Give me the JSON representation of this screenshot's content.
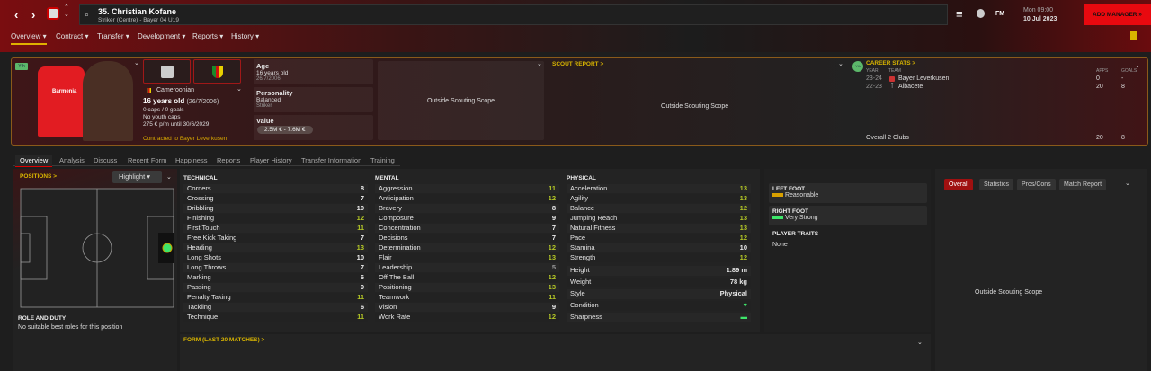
{
  "header": {
    "name": "35. Christian Kofane",
    "subtitle": "Striker (Centre) - Bayer 04 U19",
    "day_time": "Mon 09:00",
    "date": "10 Jul 2023",
    "add_manager": "ADD MANAGER",
    "fm": "FM"
  },
  "menu": [
    "Overview",
    "Contract",
    "Transfer",
    "Development",
    "Reports",
    "History"
  ],
  "profile": {
    "squad_badge": "Yth",
    "nationality": "Cameroonian",
    "age_line": "16 years old",
    "dob_paren": "(26/7/2006)",
    "caps": "0 caps / 0 goals",
    "youth_caps": "No youth caps",
    "wage": "275 € p/m until 30/6/2029",
    "contracted": "Contracted to Bayer Leverkusen",
    "shirt_sponsor": "Barmenia",
    "age_label": "Age",
    "age": "16 years old",
    "dob": "26/7/2006",
    "personality_label": "Personality",
    "personality": "Balanced",
    "role": "Striker",
    "value_label": "Value",
    "value": "2.5M € - 7.6M €"
  },
  "scouting": {
    "outside1": "Outside Scouting Scope",
    "scout_report": "SCOUT REPORT >",
    "outside2": "Outside Scouting Scope"
  },
  "career": {
    "title": "CAREER STATS >",
    "badge": "Yth",
    "cols": [
      "YEAR",
      "TEAM",
      "APPS",
      "GOALS"
    ],
    "rows": [
      {
        "year": "23-24",
        "team": "Bayer Leverkusen",
        "apps": "0",
        "goals": "-"
      },
      {
        "year": "22-23",
        "team": "Albacete",
        "apps": "20",
        "goals": "8"
      }
    ],
    "total_label": "Overall 2 Clubs",
    "total_apps": "20",
    "total_goals": "8"
  },
  "subtabs": [
    "Overview",
    "Analysis",
    "Discuss",
    "Recent Form",
    "Happiness",
    "Reports",
    "Player History",
    "Transfer Information",
    "Training"
  ],
  "positions": {
    "title": "POSITIONS >",
    "highlight": "Highlight",
    "role_title": "ROLE AND DUTY",
    "role_text": "No suitable best roles for this position",
    "position": "ST"
  },
  "attributes": {
    "technical_title": "TECHNICAL",
    "mental_title": "MENTAL",
    "physical_title": "PHYSICAL",
    "technical": [
      [
        "Corners",
        8
      ],
      [
        "Crossing",
        7
      ],
      [
        "Dribbling",
        10
      ],
      [
        "Finishing",
        12
      ],
      [
        "First Touch",
        11
      ],
      [
        "Free Kick Taking",
        7
      ],
      [
        "Heading",
        13
      ],
      [
        "Long Shots",
        10
      ],
      [
        "Long Throws",
        7
      ],
      [
        "Marking",
        6
      ],
      [
        "Passing",
        9
      ],
      [
        "Penalty Taking",
        11
      ],
      [
        "Tackling",
        6
      ],
      [
        "Technique",
        11
      ]
    ],
    "mental": [
      [
        "Aggression",
        11
      ],
      [
        "Anticipation",
        12
      ],
      [
        "Bravery",
        8
      ],
      [
        "Composure",
        9
      ],
      [
        "Concentration",
        7
      ],
      [
        "Decisions",
        7
      ],
      [
        "Determination",
        12
      ],
      [
        "Flair",
        13
      ],
      [
        "Leadership",
        5
      ],
      [
        "Off The Ball",
        12
      ],
      [
        "Positioning",
        13
      ],
      [
        "Teamwork",
        11
      ],
      [
        "Vision",
        9
      ],
      [
        "Work Rate",
        12
      ]
    ],
    "physical": [
      [
        "Acceleration",
        13
      ],
      [
        "Agility",
        13
      ],
      [
        "Balance",
        12
      ],
      [
        "Jumping Reach",
        13
      ],
      [
        "Natural Fitness",
        13
      ],
      [
        "Pace",
        12
      ],
      [
        "Stamina",
        10
      ],
      [
        "Strength",
        12
      ]
    ],
    "info": [
      [
        "Height",
        "1.89 m"
      ],
      [
        "Weight",
        "78 kg"
      ],
      [
        "Style",
        "Physical"
      ]
    ],
    "condition_label": "Condition",
    "sharpness_label": "Sharpness"
  },
  "feet": {
    "left_title": "LEFT FOOT",
    "left": "Reasonable",
    "right_title": "RIGHT FOOT",
    "right": "Very Strong",
    "traits_title": "PLAYER TRAITS",
    "traits": "None"
  },
  "form": {
    "title": "FORM (LAST 20 MATCHES) >"
  },
  "right_panel": {
    "tabs": [
      "Overall",
      "Statistics",
      "Pros/Cons",
      "Match Report"
    ],
    "outside": "Outside Scouting Scope"
  },
  "colors": {
    "accent_red": "#e8090f",
    "gold": "#d8b400",
    "good": "#b5c826",
    "green": "#3ee66a"
  }
}
